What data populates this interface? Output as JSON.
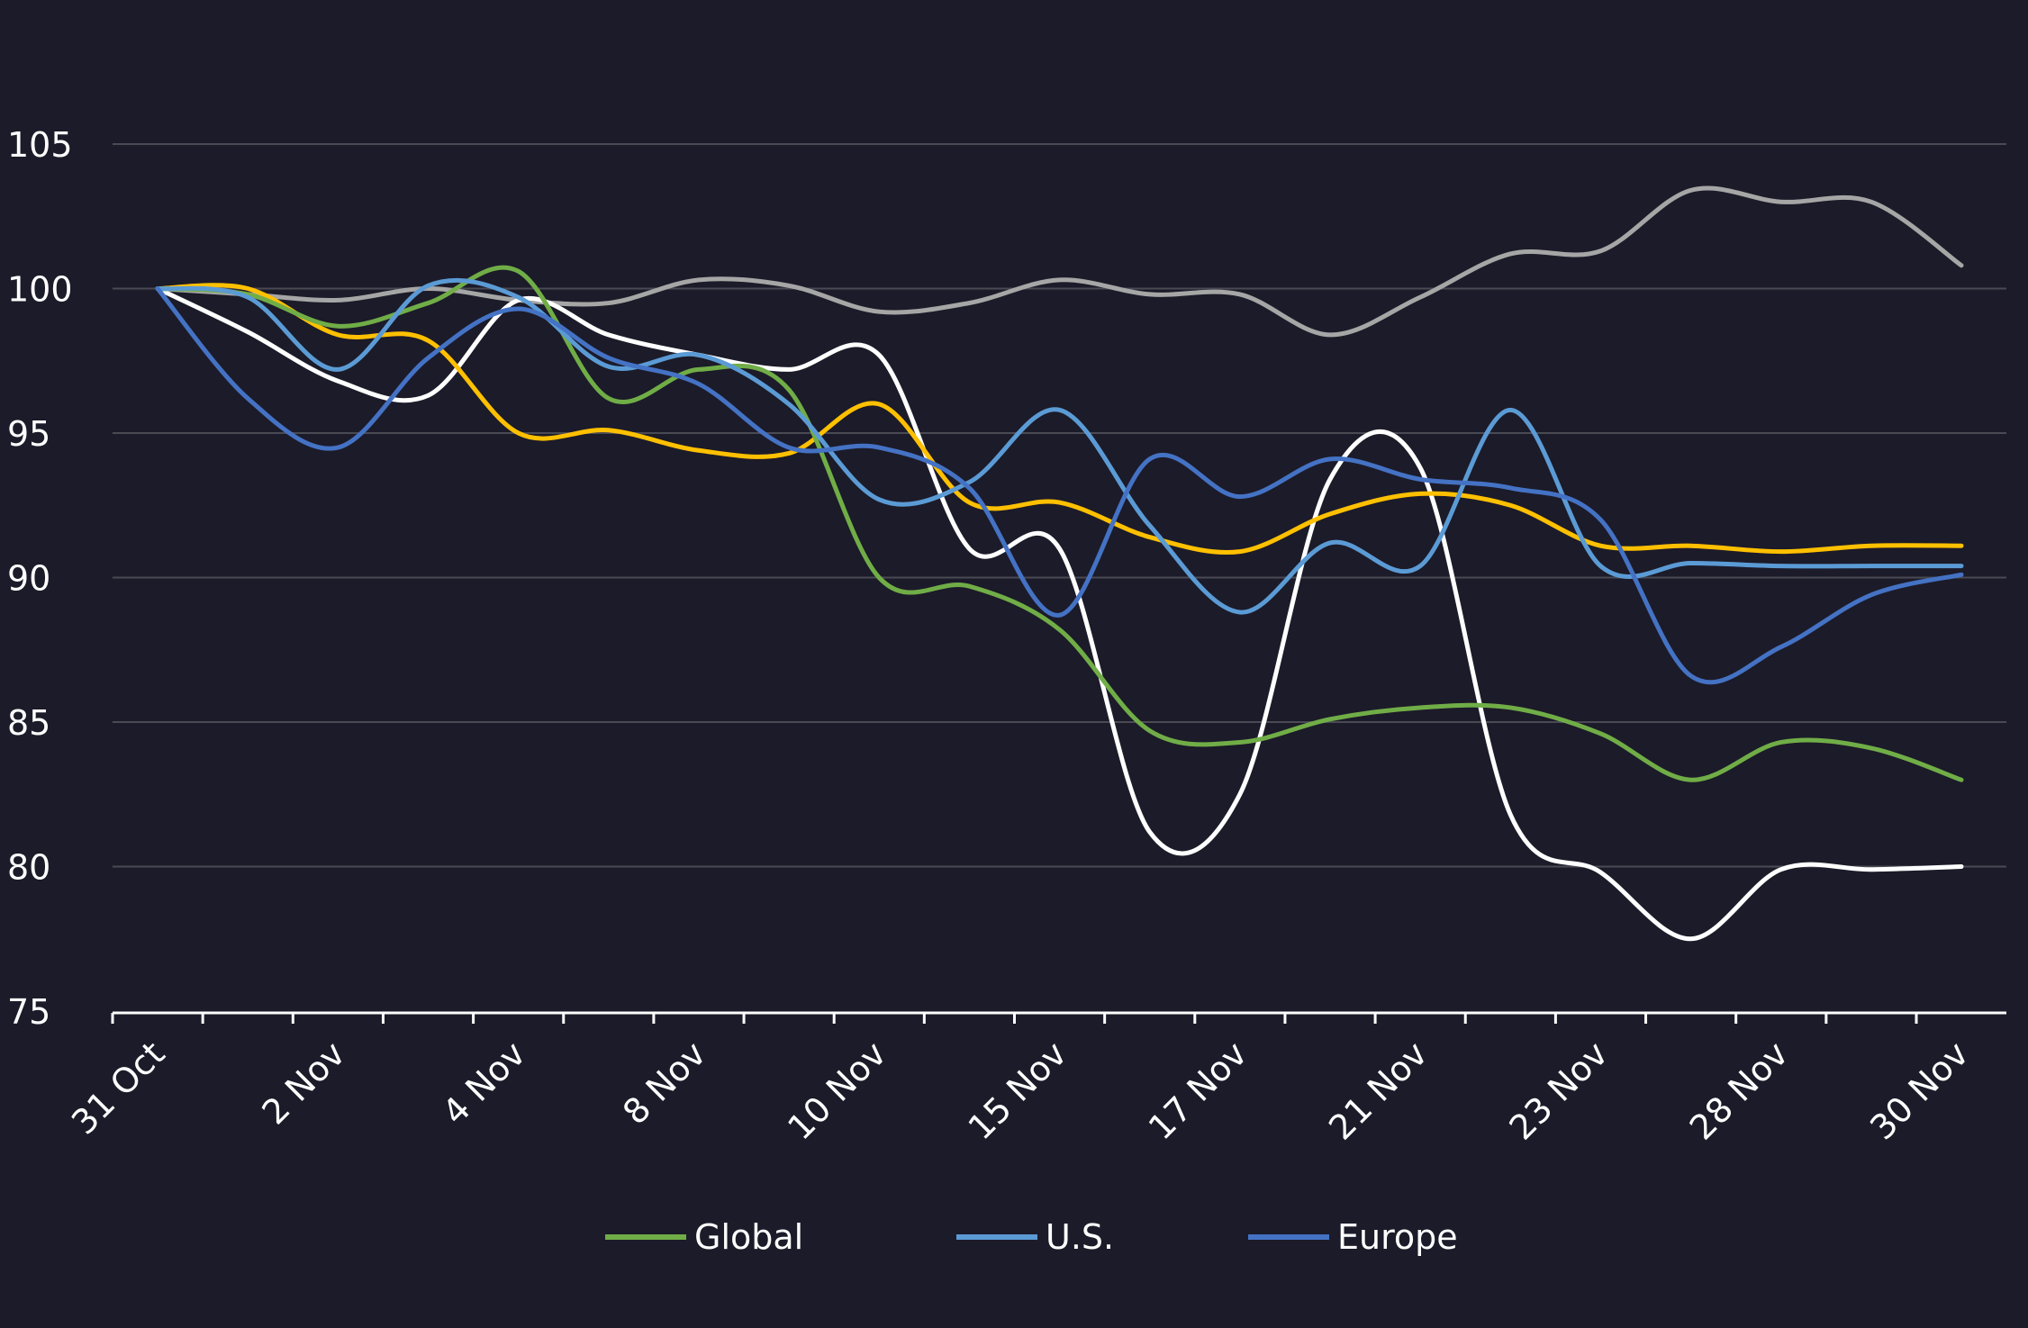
{
  "chart_data": {
    "type": "line",
    "title": "",
    "xlabel": "",
    "ylabel": "",
    "ylim": [
      75,
      108
    ],
    "y_ticks": [
      75,
      80,
      85,
      90,
      95,
      100,
      105
    ],
    "x_tick_labels": [
      "31 Oct",
      "2 Nov",
      "4 Nov",
      "8 Nov",
      "10 Nov",
      "15 Nov",
      "17 Nov",
      "21 Nov",
      "23 Nov",
      "28 Nov",
      "30 Nov"
    ],
    "grid": true,
    "legend_position": "bottom",
    "series": [
      {
        "name": "",
        "color": "#a6a6a6",
        "values": [
          100.0,
          99.8,
          99.6,
          100.0,
          99.6,
          99.5,
          100.3,
          100.1,
          99.2,
          99.5,
          100.3,
          99.8,
          99.8,
          98.4,
          99.7,
          101.2,
          101.3,
          103.4,
          103.0,
          103.0,
          100.8
        ]
      },
      {
        "name": "",
        "color": "#ffffff",
        "values": [
          100.0,
          98.5,
          96.8,
          96.3,
          99.6,
          98.4,
          97.7,
          97.2,
          97.7,
          91.0,
          91.0,
          81.2,
          82.5,
          93.4,
          93.8,
          81.8,
          79.8,
          77.5,
          79.9,
          79.9,
          80.0
        ]
      },
      {
        "name": "",
        "color": "#ffc000",
        "values": [
          100.0,
          100.0,
          98.4,
          98.2,
          95.0,
          95.1,
          94.4,
          94.3,
          96.0,
          92.6,
          92.6,
          91.4,
          90.9,
          92.2,
          92.9,
          92.5,
          91.1,
          91.1,
          90.9,
          91.1,
          91.1
        ]
      },
      {
        "name": "Global",
        "color": "#70ad47",
        "values": [
          100.0,
          99.8,
          98.7,
          99.5,
          100.6,
          96.2,
          97.2,
          96.5,
          90.0,
          89.7,
          88.2,
          84.7,
          84.3,
          85.1,
          85.5,
          85.5,
          84.6,
          83.0,
          84.3,
          84.1,
          83.0
        ]
      },
      {
        "name": "U.S.",
        "color": "#5b9bd5",
        "values": [
          100.0,
          99.7,
          97.2,
          100.1,
          99.7,
          97.3,
          97.7,
          96.0,
          92.7,
          93.3,
          95.8,
          91.8,
          88.8,
          91.2,
          90.4,
          95.8,
          90.4,
          90.5,
          90.4,
          90.4,
          90.4
        ]
      },
      {
        "name": "Europe",
        "color": "#4472c4",
        "values": [
          100.0,
          96.2,
          94.5,
          97.6,
          99.3,
          97.6,
          96.7,
          94.5,
          94.5,
          93.1,
          88.7,
          94.1,
          92.8,
          94.1,
          93.4,
          93.1,
          92.0,
          86.6,
          87.6,
          89.4,
          90.1
        ]
      }
    ]
  }
}
